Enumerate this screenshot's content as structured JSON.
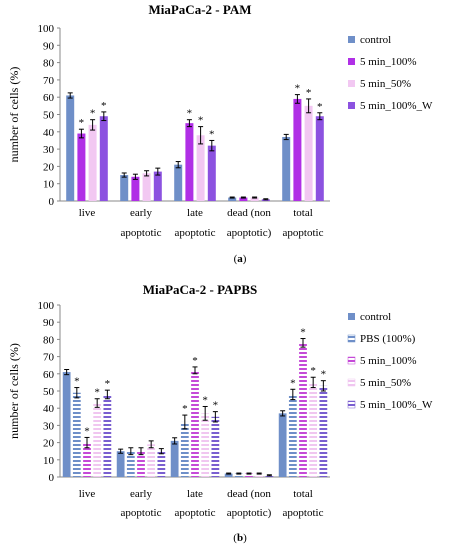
{
  "chart_data": [
    {
      "type": "bar",
      "panel_label": "(a)",
      "title": "MiaPaCa-2 - PAM",
      "ylabel": "number of cells (%)",
      "xlabel": "",
      "ylim": [
        0,
        100
      ],
      "yticks": [
        0,
        10,
        20,
        30,
        40,
        50,
        60,
        70,
        80,
        90,
        100
      ],
      "grid": false,
      "legend_position": "right",
      "categories": [
        [
          "live"
        ],
        [
          "early",
          "apoptotic"
        ],
        [
          "late",
          "apoptotic"
        ],
        [
          "dead (non",
          "apoptotic)"
        ],
        [
          "total",
          "apoptotic"
        ]
      ],
      "series": [
        {
          "name": "control",
          "color": "#6f8fc8",
          "pattern": "solid",
          "values": [
            61,
            15,
            21,
            2,
            37
          ],
          "errors": [
            1.5,
            1.2,
            1.8,
            0.3,
            1.5
          ],
          "significant": [
            false,
            false,
            false,
            false,
            false
          ]
        },
        {
          "name": "5 min_100%",
          "color": "#b02fe6",
          "pattern": "solid",
          "values": [
            39,
            14,
            45,
            2,
            59
          ],
          "errors": [
            2.5,
            1.5,
            2.0,
            0.3,
            2.5
          ],
          "significant": [
            true,
            false,
            true,
            false,
            true
          ]
        },
        {
          "name": "5 min_50%",
          "color": "#f2c8f2",
          "pattern": "solid",
          "values": [
            44,
            16,
            38,
            2,
            55
          ],
          "errors": [
            3.0,
            1.5,
            5.0,
            0.3,
            4.0
          ],
          "significant": [
            true,
            false,
            true,
            false,
            true
          ]
        },
        {
          "name": "5 min_100%_W",
          "color": "#8c52e0",
          "pattern": "solid",
          "values": [
            49,
            17,
            32,
            1,
            49
          ],
          "errors": [
            2.5,
            2.0,
            3.0,
            0.3,
            2.0
          ],
          "significant": [
            true,
            false,
            true,
            false,
            true
          ]
        }
      ]
    },
    {
      "type": "bar",
      "panel_label": "(b)",
      "title": "MiaPaCa-2 - PAPBS",
      "ylabel": "number of cells (%)",
      "xlabel": "",
      "ylim": [
        0,
        100
      ],
      "yticks": [
        0,
        10,
        20,
        30,
        40,
        50,
        60,
        70,
        80,
        90,
        100
      ],
      "grid": false,
      "legend_position": "right",
      "categories": [
        [
          "live"
        ],
        [
          "early",
          "apoptotic"
        ],
        [
          "late",
          "apoptotic"
        ],
        [
          "dead (non",
          "apoptotic)"
        ],
        [
          "total",
          "apoptotic"
        ]
      ],
      "series": [
        {
          "name": "control",
          "color": "#6f8fc8",
          "pattern": "solid",
          "values": [
            61,
            15,
            21,
            2,
            37
          ],
          "errors": [
            1.5,
            1.2,
            1.8,
            0.3,
            1.5
          ],
          "significant": [
            false,
            false,
            false,
            false,
            false
          ]
        },
        {
          "name": "PBS (100%)",
          "color": "#6f8fc8",
          "pattern": "hstripe",
          "values": [
            49,
            15,
            32,
            2,
            48
          ],
          "errors": [
            3.0,
            2.0,
            4.0,
            0.3,
            3.0
          ],
          "significant": [
            true,
            false,
            true,
            false,
            true
          ]
        },
        {
          "name": "5 min_100%",
          "color": "#c54ad8",
          "pattern": "hstripe",
          "values": [
            20,
            15,
            62,
            2,
            78
          ],
          "errors": [
            3.0,
            2.0,
            2.0,
            0.3,
            2.5
          ],
          "significant": [
            true,
            false,
            true,
            false,
            true
          ]
        },
        {
          "name": "5 min_50%",
          "color": "#f0c6f0",
          "pattern": "hstripe",
          "values": [
            43,
            19,
            37,
            2,
            55
          ],
          "errors": [
            2.5,
            2.0,
            4.0,
            0.3,
            3.0
          ],
          "significant": [
            true,
            false,
            true,
            false,
            true
          ]
        },
        {
          "name": "5 min_100%_W",
          "color": "#7a5fd0",
          "pattern": "hstripe",
          "values": [
            48,
            15,
            35,
            1,
            53
          ],
          "errors": [
            2.5,
            1.5,
            3.0,
            0.3,
            3.0
          ],
          "significant": [
            true,
            false,
            true,
            false,
            true
          ]
        }
      ]
    }
  ]
}
